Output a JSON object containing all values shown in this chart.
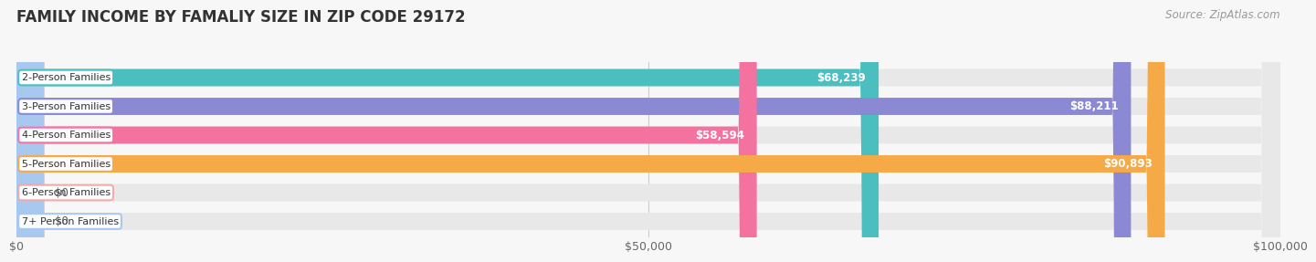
{
  "title": "FAMILY INCOME BY FAMALIY SIZE IN ZIP CODE 29172",
  "source": "Source: ZipAtlas.com",
  "categories": [
    "2-Person Families",
    "3-Person Families",
    "4-Person Families",
    "5-Person Families",
    "6-Person Families",
    "7+ Person Families"
  ],
  "values": [
    68239,
    88211,
    58594,
    90893,
    0,
    0
  ],
  "bar_colors": [
    "#4BBFBF",
    "#8B88D4",
    "#F472A0",
    "#F5A947",
    "#F4A8A8",
    "#A8C8F0"
  ],
  "bar_bg_color": "#E8E8E8",
  "xlim": [
    0,
    100000
  ],
  "xticks": [
    0,
    50000,
    100000
  ],
  "xtick_labels": [
    "$0",
    "$50,000",
    "$100,000"
  ],
  "background_color": "#f7f7f7",
  "title_fontsize": 12,
  "title_color": "#333333",
  "source_fontsize": 8.5,
  "source_color": "#999999",
  "bar_height": 0.6,
  "value_labels": [
    "$68,239",
    "$88,211",
    "$58,594",
    "$90,893",
    "$0",
    "$0"
  ],
  "zero_stub": 2200
}
